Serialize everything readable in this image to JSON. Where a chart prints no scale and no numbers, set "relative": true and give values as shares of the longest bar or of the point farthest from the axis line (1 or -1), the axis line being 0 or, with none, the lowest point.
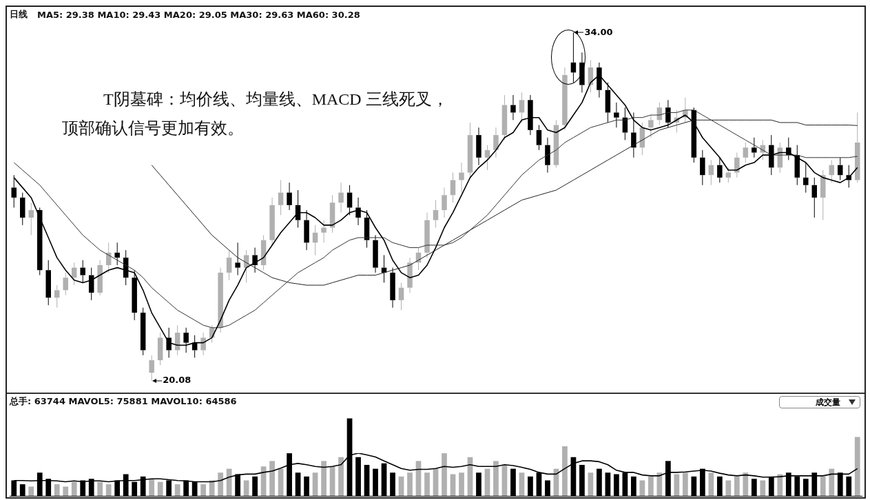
{
  "chart_data": [
    {
      "type": "candlestick",
      "title": "日线",
      "subtitle": "MA5: 29.38  MA10: 29.43  MA20: 29.05  MA30: 29.63  MA60: 30.28",
      "annotations": [
        "T阴墓碑：均价线、均量线、MACD 三线死叉，",
        "顶部确认信号更加有效。",
        "34.00",
        "20.08"
      ],
      "categories": [
        null,
        null,
        null,
        null,
        null,
        null,
        null,
        null,
        null,
        null,
        null,
        null,
        null,
        null,
        null,
        null,
        null,
        null,
        null,
        null,
        null,
        null,
        null,
        null,
        null,
        null,
        null,
        null,
        null,
        null,
        null,
        null,
        null,
        null,
        null,
        null,
        null,
        null,
        null,
        null,
        null,
        null,
        null,
        null,
        null,
        null,
        null,
        null,
        null,
        null,
        null,
        null,
        null,
        null,
        null,
        null,
        null,
        null,
        null,
        null,
        null,
        null,
        null,
        null,
        null,
        null,
        null,
        null,
        null,
        null,
        null,
        null,
        null,
        null,
        null,
        null,
        null,
        null,
        null,
        null,
        null,
        null,
        null,
        null,
        null,
        null,
        null,
        null,
        null,
        null,
        null,
        null,
        null,
        null,
        null,
        null,
        null,
        null,
        null
      ],
      "colors": [
        "#000000",
        "#000000",
        "#b0b0b0",
        "#000000",
        "#000000",
        "#b0b0b0",
        "#b0b0b0",
        "#b0b0b0",
        "#000000",
        "#000000",
        "#b0b0b0",
        "#b0b0b0",
        "#000000",
        "#000000",
        "#000000",
        "#000000",
        "#b0b0b0",
        "#b0b0b0",
        "#000000",
        "#b0b0b0",
        "#000000",
        "#000000",
        "#b0b0b0",
        "#b0b0b0",
        "#b0b0b0",
        "#b0b0b0",
        "#000000",
        "#b0b0b0",
        "#000000",
        "#b0b0b0",
        "#b0b0b0",
        "#b0b0b0",
        "#000000",
        "#000000",
        "#000000",
        "#b0b0b0",
        "#b0b0b0",
        "#b0b0b0",
        "#b0b0b0",
        "#000000",
        "#000000",
        "#000000",
        "#000000",
        "#000000",
        "#000000",
        "#b0b0b0",
        "#b0b0b0",
        "#b0b0b0",
        "#b0b0b0",
        "#b0b0b0",
        "#b0b0b0",
        "#b0b0b0",
        "#b0b0b0",
        "#b0b0b0",
        "#000000",
        "#b0b0b0",
        "#b0b0b0",
        "#b0b0b0",
        "#000000",
        "#b0b0b0",
        "#000000",
        "#000000",
        "#000000",
        "#b0b0b0",
        "#b0b0b0",
        "#000000",
        "#000000",
        "#b0b0b0",
        "#000000",
        "#000000",
        "#000000",
        "#000000",
        "#000000",
        "#b0b0b0",
        "#b0b0b0",
        "#b0b0b0",
        "#000000",
        "#b0b0b0",
        "#b0b0b0",
        "#000000",
        "#000000",
        "#b0b0b0",
        "#000000",
        "#b0b0b0",
        "#b0b0b0",
        "#b0b0b0",
        "#000000",
        "#b0b0b0",
        "#000000",
        "#b0b0b0",
        "#000000",
        "#000000",
        "#000000",
        "#000000",
        "#b0b0b0",
        "#b0b0b0",
        "#000000",
        "#000000",
        "#b0b0b0"
      ],
      "ohlc": [
        [
          27.8,
          28.3,
          27.0,
          27.4
        ],
        [
          27.4,
          27.6,
          26.3,
          26.6
        ],
        [
          26.6,
          27.2,
          25.9,
          26.9
        ],
        [
          26.9,
          27.0,
          24.3,
          24.5
        ],
        [
          24.5,
          24.9,
          23.1,
          23.4
        ],
        [
          23.4,
          23.9,
          23.0,
          23.7
        ],
        [
          23.7,
          24.4,
          23.5,
          24.2
        ],
        [
          24.2,
          24.8,
          23.9,
          24.6
        ],
        [
          24.6,
          24.9,
          24.0,
          24.3
        ],
        [
          24.3,
          24.6,
          23.3,
          23.6
        ],
        [
          23.6,
          24.9,
          23.5,
          24.7
        ],
        [
          24.7,
          25.6,
          24.4,
          25.2
        ],
        [
          25.2,
          25.6,
          24.7,
          25.0
        ],
        [
          25.0,
          25.3,
          23.9,
          24.2
        ],
        [
          24.2,
          24.5,
          22.5,
          22.8
        ],
        [
          22.8,
          23.0,
          21.1,
          21.3
        ],
        [
          20.4,
          21.1,
          20.08,
          20.9
        ],
        [
          20.9,
          22.0,
          20.7,
          21.8
        ],
        [
          21.8,
          22.2,
          21.0,
          21.3
        ],
        [
          21.3,
          22.3,
          21.1,
          22.0
        ],
        [
          22.0,
          22.2,
          21.2,
          21.6
        ],
        [
          21.6,
          21.9,
          21.0,
          21.3
        ],
        [
          21.3,
          22.0,
          21.1,
          21.8
        ],
        [
          21.8,
          22.3,
          21.6,
          22.2
        ],
        [
          22.2,
          24.6,
          22.0,
          24.4
        ],
        [
          24.4,
          25.3,
          24.1,
          25.0
        ],
        [
          24.8,
          25.6,
          24.3,
          24.6
        ],
        [
          24.6,
          25.3,
          24.0,
          25.1
        ],
        [
          25.1,
          25.4,
          24.4,
          24.7
        ],
        [
          24.7,
          25.9,
          24.5,
          25.7
        ],
        [
          25.7,
          27.4,
          25.5,
          27.1
        ],
        [
          27.1,
          28.1,
          26.7,
          27.6
        ],
        [
          27.6,
          28.0,
          26.9,
          27.1
        ],
        [
          27.1,
          27.7,
          26.2,
          26.5
        ],
        [
          26.5,
          26.9,
          25.3,
          25.6
        ],
        [
          25.6,
          26.3,
          25.1,
          26.0
        ],
        [
          26.0,
          26.5,
          25.6,
          26.2
        ],
        [
          26.2,
          27.5,
          26.0,
          27.2
        ],
        [
          27.2,
          28.0,
          26.8,
          27.6
        ],
        [
          27.6,
          27.9,
          26.7,
          27.0
        ],
        [
          27.0,
          27.4,
          26.3,
          26.6
        ],
        [
          26.6,
          26.9,
          25.4,
          25.7
        ],
        [
          25.7,
          25.9,
          24.4,
          24.6
        ],
        [
          24.6,
          25.1,
          24.0,
          24.4
        ],
        [
          24.4,
          24.6,
          23.0,
          23.3
        ],
        [
          23.3,
          24.0,
          22.9,
          23.8
        ],
        [
          23.8,
          25.0,
          23.6,
          24.8
        ],
        [
          24.8,
          25.4,
          24.5,
          25.2
        ],
        [
          25.2,
          26.8,
          25.0,
          26.5
        ],
        [
          26.5,
          27.3,
          26.2,
          26.9
        ],
        [
          26.9,
          27.8,
          26.6,
          27.5
        ],
        [
          27.5,
          28.4,
          27.2,
          28.1
        ],
        [
          28.1,
          28.8,
          27.6,
          28.4
        ],
        [
          28.4,
          30.4,
          28.2,
          29.9
        ],
        [
          29.9,
          30.2,
          28.7,
          29.0
        ],
        [
          29.0,
          29.5,
          28.5,
          29.3
        ],
        [
          29.3,
          30.2,
          29.0,
          29.9
        ],
        [
          29.9,
          31.5,
          29.7,
          31.1
        ],
        [
          31.1,
          31.5,
          30.5,
          30.8
        ],
        [
          30.8,
          31.6,
          30.4,
          31.3
        ],
        [
          31.3,
          31.5,
          29.9,
          30.1
        ],
        [
          30.1,
          30.3,
          29.3,
          29.5
        ],
        [
          29.5,
          29.8,
          28.4,
          28.7
        ],
        [
          28.7,
          30.5,
          28.6,
          30.3
        ],
        [
          30.3,
          32.6,
          30.1,
          32.3
        ],
        [
          32.8,
          34.0,
          32.0,
          32.4
        ],
        [
          32.8,
          33.2,
          31.6,
          31.9
        ],
        [
          31.9,
          32.9,
          31.6,
          32.6
        ],
        [
          32.6,
          32.8,
          31.4,
          31.7
        ],
        [
          31.7,
          32.0,
          30.4,
          30.8
        ],
        [
          30.8,
          31.2,
          30.2,
          30.6
        ],
        [
          30.6,
          31.0,
          29.7,
          30.0
        ],
        [
          30.0,
          30.8,
          29.0,
          29.4
        ],
        [
          29.4,
          30.4,
          29.1,
          30.2
        ],
        [
          30.2,
          30.7,
          29.8,
          30.5
        ],
        [
          30.5,
          31.2,
          30.3,
          31.0
        ],
        [
          31.0,
          31.3,
          30.2,
          30.4
        ],
        [
          30.4,
          30.9,
          30.0,
          30.6
        ],
        [
          30.6,
          31.4,
          30.4,
          30.9
        ],
        [
          30.9,
          31.0,
          28.8,
          29.0
        ],
        [
          29.0,
          29.3,
          27.9,
          28.3
        ],
        [
          28.3,
          28.9,
          27.9,
          28.7
        ],
        [
          28.7,
          29.0,
          28.0,
          28.2
        ],
        [
          28.2,
          28.6,
          28.0,
          28.4
        ],
        [
          28.4,
          29.2,
          28.2,
          29.0
        ],
        [
          29.0,
          29.6,
          28.8,
          29.4
        ],
        [
          29.4,
          29.8,
          29.0,
          29.2
        ],
        [
          29.2,
          29.7,
          28.9,
          29.5
        ],
        [
          29.5,
          29.9,
          28.3,
          28.6
        ],
        [
          28.6,
          29.6,
          28.4,
          29.4
        ],
        [
          29.4,
          29.8,
          28.9,
          29.1
        ],
        [
          29.1,
          29.5,
          27.9,
          28.2
        ],
        [
          28.2,
          28.8,
          27.6,
          27.9
        ],
        [
          27.9,
          28.2,
          26.6,
          27.4
        ],
        [
          27.4,
          28.5,
          26.5,
          28.3
        ],
        [
          28.3,
          28.9,
          28.0,
          28.7
        ],
        [
          28.7,
          29.0,
          28.1,
          28.3
        ],
        [
          28.3,
          28.7,
          27.8,
          28.1
        ],
        [
          28.1,
          30.8,
          28.0,
          29.6
        ]
      ],
      "series": [
        {
          "type": "line",
          "color": "#000000",
          "values": [
            28.2,
            27.8,
            27.4,
            26.6,
            25.8,
            25.0,
            24.5,
            24.1,
            24.0,
            24.1,
            24.3,
            24.5,
            24.6,
            24.5,
            24.4,
            23.7,
            22.8,
            22.2,
            21.6,
            21.5,
            21.5,
            21.6,
            21.6,
            21.8,
            22.5,
            23.3,
            23.9,
            24.6,
            24.8,
            25.0,
            25.5,
            26.0,
            26.4,
            26.8,
            26.8,
            26.6,
            26.3,
            26.3,
            26.5,
            26.8,
            26.9,
            26.8,
            26.2,
            25.7,
            24.9,
            24.4,
            24.2,
            24.3,
            24.7,
            25.4,
            26.2,
            26.8,
            27.5,
            28.2,
            28.6,
            28.9,
            29.3,
            29.8,
            30.0,
            30.5,
            30.6,
            30.6,
            30.1,
            30.0,
            30.2,
            30.7,
            31.2,
            32.0,
            32.3,
            31.9,
            31.5,
            31.1,
            30.5,
            30.2,
            30.1,
            30.2,
            30.3,
            30.5,
            30.7,
            30.4,
            29.8,
            29.4,
            29.0,
            28.5,
            28.5,
            28.7,
            28.8,
            29.1,
            29.1,
            29.2,
            29.2,
            29.0,
            28.8,
            28.4,
            28.2,
            28.1,
            28.0,
            28.2,
            28.6
          ]
        },
        {
          "type": "line",
          "color": "#333333",
          "values": [
            28.8,
            28.5,
            28.2,
            27.9,
            27.5,
            27.1,
            26.7,
            26.3,
            25.9,
            25.6,
            25.3,
            25.1,
            24.9,
            24.7,
            24.5,
            24.2,
            23.8,
            23.5,
            23.2,
            22.9,
            22.7,
            22.5,
            22.3,
            22.2,
            22.2,
            22.3,
            22.5,
            22.7,
            22.9,
            23.2,
            23.5,
            23.8,
            24.1,
            24.4,
            24.6,
            24.8,
            25.0,
            25.3,
            25.5,
            25.7,
            25.8,
            25.8,
            25.8,
            25.8,
            25.6,
            25.5,
            25.4,
            25.4,
            25.5,
            25.5,
            25.5,
            25.6,
            25.8,
            26.1,
            26.4,
            26.7,
            27.1,
            27.5,
            27.9,
            28.3,
            28.6,
            28.9,
            29.1,
            29.3,
            29.6,
            29.8,
            30.0,
            30.2,
            30.3,
            30.4,
            30.5,
            30.5,
            30.6,
            30.6,
            30.7,
            30.7,
            30.8,
            30.8,
            30.9,
            30.9,
            30.7,
            30.5,
            30.3,
            30.1,
            29.9,
            29.7,
            29.5,
            29.3,
            29.1,
            29.1,
            29.1,
            29.1,
            29.0,
            29.0,
            29.0,
            29.0,
            29.0,
            29.0,
            29.05
          ]
        },
        {
          "type": "line",
          "color": "#222222",
          "values": [
            null,
            null,
            null,
            null,
            null,
            null,
            null,
            null,
            null,
            null,
            null,
            null,
            null,
            null,
            null,
            null,
            28.7,
            28.3,
            27.9,
            27.5,
            27.1,
            26.7,
            26.3,
            25.9,
            25.6,
            25.3,
            25.0,
            24.8,
            24.6,
            24.4,
            24.2,
            24.1,
            24.0,
            23.95,
            23.9,
            23.9,
            23.9,
            24.0,
            24.1,
            24.2,
            24.3,
            24.3,
            24.3,
            24.4,
            24.5,
            24.6,
            24.7,
            24.9,
            25.1,
            25.3,
            25.5,
            25.7,
            25.9,
            26.1,
            26.3,
            26.5,
            26.7,
            26.9,
            27.1,
            27.3,
            27.4,
            27.5,
            27.6,
            27.7,
            27.9,
            28.1,
            28.3,
            28.5,
            28.7,
            28.9,
            29.1,
            29.3,
            29.5,
            29.7,
            29.9,
            30.1,
            30.2,
            30.3,
            30.4,
            30.5,
            30.5,
            30.5,
            30.5,
            30.5,
            30.5,
            30.5,
            30.5,
            30.5,
            30.5,
            30.4,
            30.4,
            30.4,
            30.3,
            30.3,
            30.3,
            30.3,
            30.3,
            30.3,
            30.28
          ]
        }
      ]
    },
    {
      "type": "bar",
      "relative": true,
      "title": "总手: 63744 MAVOL5: 75881 MAVOL10: 64586",
      "annotations": [
        "成交量"
      ],
      "categories": [
        null,
        null,
        null,
        null,
        null,
        null,
        null,
        null,
        null,
        null,
        null,
        null,
        null,
        null,
        null,
        null,
        null,
        null,
        null,
        null,
        null,
        null,
        null,
        null,
        null,
        null,
        null,
        null,
        null,
        null,
        null,
        null,
        null,
        null,
        null,
        null,
        null,
        null,
        null,
        null,
        null,
        null,
        null,
        null,
        null,
        null,
        null,
        null,
        null,
        null,
        null,
        null,
        null,
        null,
        null,
        null,
        null,
        null,
        null,
        null,
        null,
        null,
        null,
        null,
        null,
        null,
        null,
        null,
        null,
        null,
        null,
        null,
        null,
        null,
        null,
        null,
        null,
        null,
        null,
        null,
        null,
        null,
        null,
        null,
        null,
        null,
        null,
        null,
        null,
        null,
        null,
        null,
        null,
        null,
        null,
        null,
        null,
        null,
        null
      ],
      "series": [
        {
          "type": "bar",
          "values": [
            0.2,
            0.15,
            0.12,
            0.3,
            0.22,
            0.15,
            0.12,
            0.18,
            0.2,
            0.22,
            0.18,
            0.15,
            0.2,
            0.28,
            0.18,
            0.25,
            0.22,
            0.18,
            0.2,
            0.15,
            0.2,
            0.18,
            0.15,
            0.2,
            0.3,
            0.35,
            0.28,
            0.2,
            0.25,
            0.38,
            0.45,
            0.35,
            0.55,
            0.3,
            0.25,
            0.3,
            0.45,
            0.38,
            0.5,
            1.0,
            0.5,
            0.4,
            0.35,
            0.42,
            0.3,
            0.25,
            0.3,
            0.45,
            0.3,
            0.35,
            0.55,
            0.28,
            0.3,
            0.5,
            0.3,
            0.35,
            0.45,
            0.4,
            0.35,
            0.3,
            0.25,
            0.3,
            0.2,
            0.35,
            0.64,
            0.5,
            0.4,
            0.3,
            0.35,
            0.3,
            0.28,
            0.3,
            0.25,
            0.2,
            0.25,
            0.3,
            0.45,
            0.28,
            0.3,
            0.25,
            0.35,
            0.3,
            0.25,
            0.2,
            0.25,
            0.3,
            0.22,
            0.2,
            0.25,
            0.28,
            0.3,
            0.25,
            0.22,
            0.3,
            0.25,
            0.35,
            0.3,
            0.25,
            0.76
          ],
          "colors": [
            "#000000",
            "#000000",
            "#b0b0b0",
            "#000000",
            "#000000",
            "#b0b0b0",
            "#b0b0b0",
            "#b0b0b0",
            "#000000",
            "#000000",
            "#b0b0b0",
            "#b0b0b0",
            "#000000",
            "#000000",
            "#000000",
            "#000000",
            "#b0b0b0",
            "#b0b0b0",
            "#000000",
            "#b0b0b0",
            "#000000",
            "#000000",
            "#b0b0b0",
            "#b0b0b0",
            "#b0b0b0",
            "#b0b0b0",
            "#000000",
            "#b0b0b0",
            "#000000",
            "#b0b0b0",
            "#b0b0b0",
            "#b0b0b0",
            "#000000",
            "#000000",
            "#000000",
            "#b0b0b0",
            "#b0b0b0",
            "#b0b0b0",
            "#b0b0b0",
            "#000000",
            "#000000",
            "#000000",
            "#000000",
            "#000000",
            "#000000",
            "#b0b0b0",
            "#b0b0b0",
            "#b0b0b0",
            "#b0b0b0",
            "#b0b0b0",
            "#b0b0b0",
            "#b0b0b0",
            "#b0b0b0",
            "#b0b0b0",
            "#000000",
            "#b0b0b0",
            "#b0b0b0",
            "#b0b0b0",
            "#000000",
            "#b0b0b0",
            "#000000",
            "#000000",
            "#000000",
            "#b0b0b0",
            "#b0b0b0",
            "#000000",
            "#000000",
            "#b0b0b0",
            "#000000",
            "#000000",
            "#000000",
            "#000000",
            "#000000",
            "#b0b0b0",
            "#b0b0b0",
            "#b0b0b0",
            "#000000",
            "#b0b0b0",
            "#b0b0b0",
            "#000000",
            "#000000",
            "#b0b0b0",
            "#000000",
            "#b0b0b0",
            "#b0b0b0",
            "#b0b0b0",
            "#000000",
            "#b0b0b0",
            "#000000",
            "#b0b0b0",
            "#000000",
            "#000000",
            "#000000",
            "#000000",
            "#b0b0b0",
            "#b0b0b0",
            "#000000",
            "#000000",
            "#b0b0b0"
          ]
        }
      ]
    },
    {
      "type": "line",
      "relative": true,
      "categories": [
        null,
        null,
        null,
        null,
        null,
        null,
        null,
        null,
        null,
        null,
        null,
        null,
        null,
        null,
        null,
        null,
        null,
        null,
        null,
        null,
        null,
        null,
        null,
        null,
        null,
        null,
        null,
        null,
        null,
        null,
        null,
        null,
        null,
        null,
        null,
        null,
        null,
        null,
        null,
        null,
        null,
        null,
        null,
        null,
        null,
        null,
        null,
        null,
        null,
        null,
        null,
        null,
        null,
        null,
        null,
        null,
        null,
        null,
        null,
        null,
        null,
        null,
        null,
        null,
        null,
        null,
        null,
        null,
        null,
        null,
        null,
        null,
        null,
        null,
        null,
        null,
        null,
        null,
        null,
        null,
        null,
        null,
        null,
        null,
        null,
        null,
        null,
        null,
        null,
        null,
        null,
        null,
        null,
        null,
        null,
        null,
        null,
        null,
        null
      ],
      "series": [
        {
          "type": "line",
          "color": "#000000",
          "values": [
            0.36,
            0.36,
            0.35,
            0.36,
            0.36,
            0.35,
            0.33,
            0.35,
            0.33,
            0.35,
            0.35,
            0.33,
            0.35,
            0.36,
            0.36,
            0.38,
            0.4,
            0.4,
            0.38,
            0.36,
            0.35,
            0.33,
            0.33,
            0.33,
            0.36,
            0.44,
            0.49,
            0.51,
            0.51,
            0.55,
            0.58,
            0.65,
            0.73,
            0.76,
            0.73,
            0.69,
            0.67,
            0.69,
            0.73,
            0.95,
            1,
            0.96,
            0.91,
            0.82,
            0.73,
            0.64,
            0.6,
            0.62,
            0.62,
            0.64,
            0.69,
            0.67,
            0.69,
            0.73,
            0.69,
            0.69,
            0.69,
            0.73,
            0.71,
            0.67,
            0.62,
            0.55,
            0.51,
            0.51,
            0.64,
            0.76,
            0.82,
            0.82,
            0.8,
            0.73,
            0.6,
            0.55,
            0.55,
            0.49,
            0.47,
            0.47,
            0.55,
            0.55,
            0.56,
            0.58,
            0.6,
            0.58,
            0.53,
            0.49,
            0.47,
            0.49,
            0.47,
            0.44,
            0.44,
            0.45,
            0.47,
            0.47,
            0.47,
            0.47,
            0.47,
            0.51,
            0.51,
            0.51,
            0.64
          ]
        }
      ]
    }
  ]
}
